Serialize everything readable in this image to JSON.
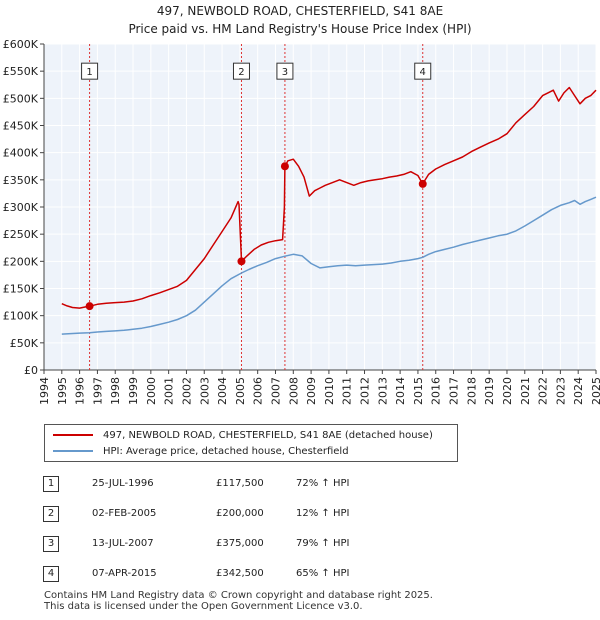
{
  "title_line1": "497, NEWBOLD ROAD, CHESTERFIELD, S41 8AE",
  "title_line2": "Price paid vs. HM Land Registry's House Price Index (HPI)",
  "chart_data": {
    "type": "line",
    "xlim": [
      1994,
      2025
    ],
    "ylim": [
      0,
      600000
    ],
    "x_ticks": [
      1994,
      1995,
      1996,
      1997,
      1998,
      1999,
      2000,
      2001,
      2002,
      2003,
      2004,
      2005,
      2006,
      2007,
      2008,
      2009,
      2010,
      2011,
      2012,
      2013,
      2014,
      2015,
      2016,
      2017,
      2018,
      2019,
      2020,
      2021,
      2022,
      2023,
      2024,
      2025
    ],
    "y_ticks": [
      {
        "value": 0,
        "label": "£0"
      },
      {
        "value": 50000,
        "label": "£50K"
      },
      {
        "value": 100000,
        "label": "£100K"
      },
      {
        "value": 150000,
        "label": "£150K"
      },
      {
        "value": 200000,
        "label": "£200K"
      },
      {
        "value": 250000,
        "label": "£250K"
      },
      {
        "value": 300000,
        "label": "£300K"
      },
      {
        "value": 350000,
        "label": "£350K"
      },
      {
        "value": 400000,
        "label": "£400K"
      },
      {
        "value": 450000,
        "label": "£450K"
      },
      {
        "value": 500000,
        "label": "£500K"
      },
      {
        "value": 550000,
        "label": "£550K"
      },
      {
        "value": 600000,
        "label": "£600K"
      }
    ],
    "series": [
      {
        "name": "497, NEWBOLD ROAD, CHESTERFIELD, S41 8AE (detached house)",
        "color": "#cc0000",
        "x": [
          1995.0,
          1995.3,
          1995.6,
          1996.0,
          1996.3,
          1996.56,
          1997.0,
          1997.5,
          1998.0,
          1998.5,
          1999.0,
          1999.5,
          2000.0,
          2000.5,
          2001.0,
          2001.5,
          2002.0,
          2002.5,
          2003.0,
          2003.5,
          2004.0,
          2004.5,
          2004.9,
          2004.95,
          2005.09,
          2005.4,
          2005.8,
          2006.2,
          2006.6,
          2007.0,
          2007.4,
          2007.5,
          2007.53,
          2007.7,
          2008.0,
          2008.3,
          2008.6,
          2008.9,
          2009.2,
          2009.5,
          2009.8,
          2010.2,
          2010.6,
          2011.0,
          2011.4,
          2011.8,
          2012.2,
          2012.6,
          2013.0,
          2013.4,
          2013.8,
          2014.2,
          2014.6,
          2015.0,
          2015.27,
          2015.6,
          2016.0,
          2016.5,
          2017.0,
          2017.5,
          2018.0,
          2018.5,
          2019.0,
          2019.5,
          2020.0,
          2020.5,
          2021.0,
          2021.5,
          2022.0,
          2022.3,
          2022.6,
          2022.9,
          2023.2,
          2023.5,
          2023.8,
          2024.1,
          2024.4,
          2024.7,
          2025.0
        ],
        "y": [
          122000,
          118000,
          115000,
          114000,
          116000,
          117500,
          121000,
          123000,
          124000,
          125000,
          127000,
          131000,
          137000,
          142000,
          148000,
          154000,
          165000,
          185000,
          205000,
          230000,
          255000,
          280000,
          310000,
          305000,
          200000,
          210000,
          222000,
          230000,
          235000,
          238000,
          240000,
          300000,
          375000,
          385000,
          388000,
          375000,
          355000,
          320000,
          330000,
          335000,
          340000,
          345000,
          350000,
          345000,
          340000,
          345000,
          348000,
          350000,
          352000,
          355000,
          357000,
          360000,
          365000,
          358000,
          342500,
          360000,
          370000,
          378000,
          385000,
          392000,
          402000,
          410000,
          418000,
          425000,
          435000,
          455000,
          470000,
          485000,
          505000,
          510000,
          515000,
          495000,
          510000,
          520000,
          505000,
          490000,
          500000,
          505000,
          515000
        ]
      },
      {
        "name": "HPI: Average price, detached house, Chesterfield",
        "color": "#6699cc",
        "x": [
          1995.0,
          1995.5,
          1996.0,
          1996.56,
          1997.0,
          1997.5,
          1998.0,
          1998.5,
          1999.0,
          1999.5,
          2000.0,
          2000.5,
          2001.0,
          2001.5,
          2002.0,
          2002.5,
          2003.0,
          2003.5,
          2004.0,
          2004.5,
          2005.09,
          2005.5,
          2006.0,
          2006.5,
          2007.0,
          2007.53,
          2008.0,
          2008.5,
          2009.0,
          2009.5,
          2010.0,
          2010.5,
          2011.0,
          2011.5,
          2012.0,
          2012.5,
          2013.0,
          2013.5,
          2014.0,
          2014.5,
          2015.0,
          2015.27,
          2015.6,
          2016.0,
          2016.5,
          2017.0,
          2017.5,
          2018.0,
          2018.5,
          2019.0,
          2019.5,
          2020.0,
          2020.5,
          2021.0,
          2021.5,
          2022.0,
          2022.5,
          2023.0,
          2023.5,
          2023.8,
          2024.1,
          2024.4,
          2024.7,
          2025.0
        ],
        "y": [
          66000,
          67000,
          68000,
          68500,
          70000,
          71000,
          72000,
          73000,
          75000,
          77000,
          80000,
          84000,
          88000,
          93000,
          100000,
          110000,
          125000,
          140000,
          155000,
          168000,
          178500,
          185000,
          192000,
          198000,
          205000,
          209500,
          213000,
          210000,
          196000,
          188000,
          190000,
          192000,
          193000,
          192000,
          193000,
          194000,
          195000,
          197000,
          200000,
          202000,
          205000,
          207500,
          213000,
          218000,
          222000,
          226000,
          231000,
          235000,
          239000,
          243000,
          247000,
          250000,
          256000,
          265000,
          275000,
          285000,
          295000,
          303000,
          308000,
          312000,
          305000,
          310000,
          314000,
          318000
        ]
      }
    ],
    "sales": [
      {
        "num": "1",
        "year": 1996.56,
        "price": 117500,
        "label_value": 550000
      },
      {
        "num": "2",
        "year": 2005.09,
        "price": 200000,
        "label_value": 550000
      },
      {
        "num": "3",
        "year": 2007.53,
        "price": 375000,
        "label_value": 550000
      },
      {
        "num": "4",
        "year": 2015.27,
        "price": 342500,
        "label_value": 550000
      }
    ]
  },
  "legend": {
    "red_label": "497, NEWBOLD ROAD, CHESTERFIELD, S41 8AE (detached house)",
    "blue_label": "HPI: Average price, detached house, Chesterfield",
    "red_color": "#cc0000",
    "blue_color": "#6699cc"
  },
  "sales_table": [
    {
      "num": "1",
      "date": "25-JUL-1996",
      "price": "£117,500",
      "hpi": "72% ↑ HPI"
    },
    {
      "num": "2",
      "date": "02-FEB-2005",
      "price": "£200,000",
      "hpi": "12% ↑ HPI"
    },
    {
      "num": "3",
      "date": "13-JUL-2007",
      "price": "£375,000",
      "hpi": "79% ↑ HPI"
    },
    {
      "num": "4",
      "date": "07-APR-2015",
      "price": "£342,500",
      "hpi": "65% ↑ HPI"
    }
  ],
  "footer_line1": "Contains HM Land Registry data © Crown copyright and database right 2025.",
  "footer_line2": "This data is licensed under the Open Government Licence v3.0."
}
